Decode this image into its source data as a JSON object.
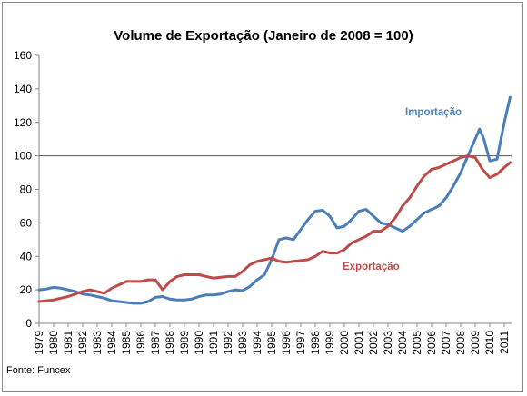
{
  "chart_data": {
    "type": "line",
    "title": "Volume de Exportação (Janeiro de 2008 = 100)",
    "source": "Fonte: Funcex",
    "ylim": [
      0,
      160
    ],
    "yticks": [
      0,
      20,
      40,
      60,
      80,
      100,
      120,
      140,
      160
    ],
    "xlim": [
      1979,
      2011.5
    ],
    "xticks": [
      "1979",
      "1980",
      "1981",
      "1982",
      "1983",
      "1984",
      "1985",
      "1986",
      "1987",
      "1988",
      "1989",
      "1990",
      "1991",
      "1992",
      "1993",
      "1994",
      "1995",
      "1996",
      "1997",
      "1998",
      "1999",
      "2000",
      "2001",
      "2002",
      "2003",
      "2004",
      "2005",
      "2006",
      "2007",
      "2008",
      "2009",
      "2010",
      "2011"
    ],
    "reference_line": 100,
    "grid": false,
    "series": [
      {
        "name": "Importação",
        "color": "#4a7ebb",
        "x": [
          1979.0,
          1979.5,
          1980.0,
          1980.5,
          1981.0,
          1981.5,
          1982.0,
          1982.5,
          1983.0,
          1983.5,
          1984.0,
          1984.5,
          1985.0,
          1985.5,
          1986.0,
          1986.5,
          1987.0,
          1987.5,
          1988.0,
          1988.5,
          1989.0,
          1989.5,
          1990.0,
          1990.5,
          1991.0,
          1991.5,
          1992.0,
          1992.5,
          1993.0,
          1993.5,
          1994.0,
          1994.5,
          1995.0,
          1995.5,
          1996.0,
          1996.5,
          1997.0,
          1997.5,
          1998.0,
          1998.5,
          1999.0,
          1999.5,
          2000.0,
          2000.5,
          2001.0,
          2001.5,
          2002.0,
          2002.5,
          2003.0,
          2003.5,
          2004.0,
          2004.5,
          2005.0,
          2005.5,
          2006.0,
          2006.5,
          2007.0,
          2007.5,
          2008.0,
          2008.5,
          2009.0,
          2009.3,
          2009.6,
          2010.0,
          2010.5,
          2011.0,
          2011.4
        ],
        "y": [
          20,
          20.5,
          21.5,
          21,
          20,
          19,
          17.5,
          17,
          16,
          15,
          13.5,
          13,
          12.5,
          12,
          12,
          13,
          15.5,
          16,
          14.5,
          14,
          14,
          14.5,
          16,
          17,
          17,
          17.5,
          19,
          20,
          19.5,
          22,
          26,
          29,
          38,
          50,
          51,
          50,
          56,
          62,
          67,
          67.5,
          64,
          57,
          58,
          62,
          67,
          68,
          64,
          60,
          59,
          57,
          55,
          58,
          62,
          66,
          68,
          70,
          75,
          82,
          90,
          100,
          110,
          116,
          110,
          97,
          98,
          120,
          135
        ]
      },
      {
        "name": "Exportação",
        "color": "#be4b48",
        "x": [
          1979.0,
          1979.5,
          1980.0,
          1980.5,
          1981.0,
          1981.5,
          1982.0,
          1982.5,
          1983.0,
          1983.5,
          1984.0,
          1984.5,
          1985.0,
          1985.5,
          1986.0,
          1986.5,
          1987.0,
          1987.5,
          1988.0,
          1988.5,
          1989.0,
          1989.5,
          1990.0,
          1990.5,
          1991.0,
          1991.5,
          1992.0,
          1992.5,
          1993.0,
          1993.5,
          1994.0,
          1994.5,
          1995.0,
          1995.5,
          1996.0,
          1996.5,
          1997.0,
          1997.5,
          1998.0,
          1998.5,
          1999.0,
          1999.5,
          2000.0,
          2000.5,
          2001.0,
          2001.5,
          2002.0,
          2002.5,
          2003.0,
          2003.5,
          2004.0,
          2004.5,
          2005.0,
          2005.5,
          2006.0,
          2006.5,
          2007.0,
          2007.5,
          2008.0,
          2008.5,
          2009.0,
          2009.5,
          2010.0,
          2010.5,
          2011.0,
          2011.4
        ],
        "y": [
          13,
          13.5,
          14,
          15,
          16,
          17.5,
          19,
          20,
          19,
          18,
          21,
          23,
          25,
          25,
          25,
          26,
          26,
          20,
          25,
          28,
          29,
          29,
          29,
          28,
          27,
          27.5,
          28,
          28,
          31,
          35,
          37,
          38,
          39,
          37,
          36.5,
          37,
          37.5,
          38,
          40,
          43,
          42,
          42,
          44,
          48,
          50,
          52,
          55,
          55,
          58,
          63,
          70,
          75,
          82,
          88,
          92,
          93,
          95,
          97,
          99,
          100,
          99,
          92,
          87,
          89,
          93,
          96
        ]
      }
    ],
    "labels": [
      {
        "text": "Importação",
        "series": 0
      },
      {
        "text": "Exportação",
        "series": 1
      }
    ]
  }
}
